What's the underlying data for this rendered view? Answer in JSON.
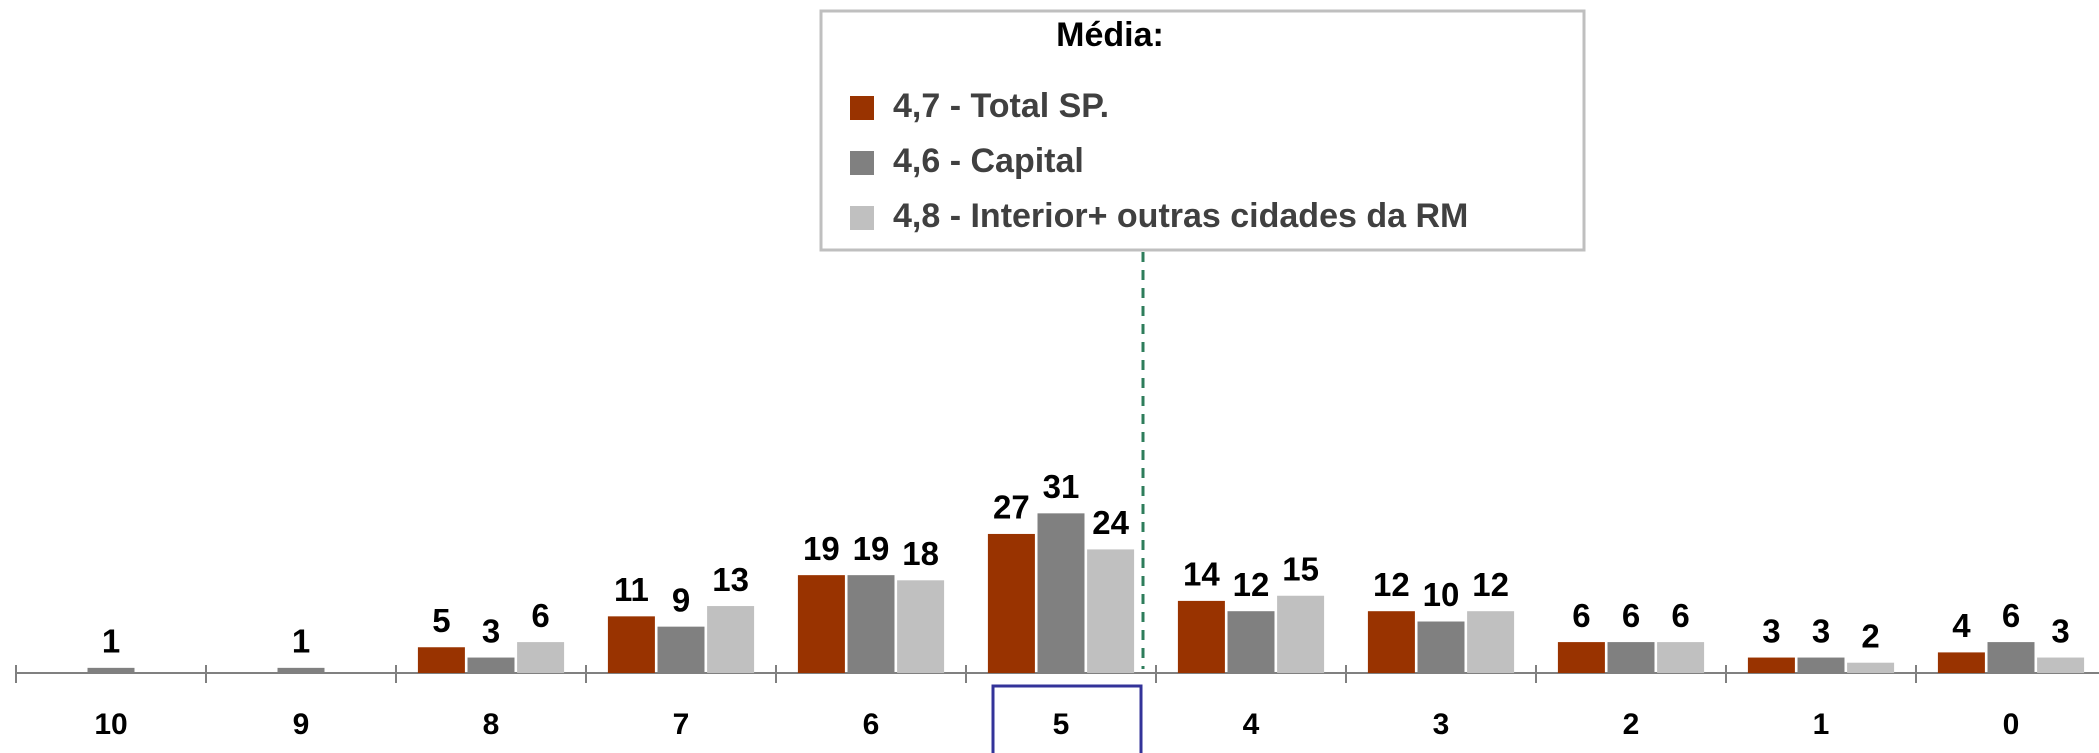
{
  "chart_data": {
    "type": "bar",
    "legend_title": "Média:",
    "categories": [
      "10",
      "9",
      "8",
      "7",
      "6",
      "5",
      "4",
      "3",
      "2",
      "1",
      "0"
    ],
    "series": [
      {
        "name": "4,7 - Total SP.",
        "color": "#993300",
        "values": [
          null,
          null,
          5,
          11,
          19,
          27,
          14,
          12,
          6,
          3,
          4
        ]
      },
      {
        "name": "4,6 - Capital",
        "color": "#808080",
        "values": [
          1,
          1,
          3,
          9,
          19,
          31,
          12,
          10,
          6,
          3,
          6
        ]
      },
      {
        "name": "4,8 - Interior+ outras cidades da RM",
        "color": "#c0c0c0",
        "values": [
          null,
          null,
          6,
          13,
          18,
          24,
          15,
          12,
          6,
          2,
          3
        ]
      }
    ]
  }
}
